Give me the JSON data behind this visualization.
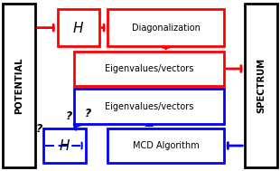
{
  "bg_color": "#ffffff",
  "red": "#ff0000",
  "blue": "#0000ff",
  "black": "#000000",
  "potential_label": "POTENTIAL",
  "spectrum_label": "SPECTRUM",
  "H_label": "H",
  "diag_label": "Diagonalization",
  "eigen_label": "Eigenvalues/vectors",
  "mcd_label": "MCD Algorithm"
}
